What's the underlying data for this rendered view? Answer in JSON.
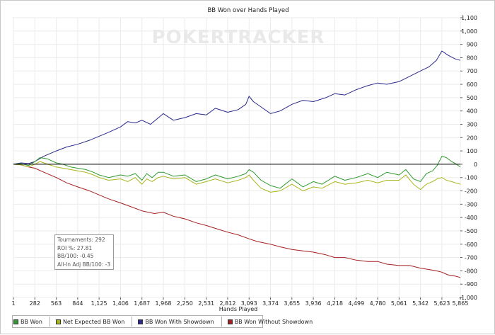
{
  "chart_data": {
    "type": "line",
    "title": "BB Won over Hands Played",
    "xlabel": "Hands Played",
    "ylabel": "",
    "watermark": "POKERTRACKER",
    "xlim": [
      1,
      5865
    ],
    "ylim": [
      -1000,
      1100
    ],
    "x_ticks": [
      1,
      282,
      563,
      844,
      1125,
      1406,
      1687,
      1968,
      2250,
      2531,
      2812,
      3093,
      3374,
      3655,
      3936,
      4218,
      4499,
      4780,
      5061,
      5342,
      5623,
      5865
    ],
    "x_tick_labels": [
      "1",
      "282",
      "563",
      "844",
      "1,125",
      "1,406",
      "1,687",
      "1,968",
      "2,250",
      "2,531",
      "2,812",
      "3,093",
      "3,374",
      "3,655",
      "3,936",
      "4,218",
      "4,499",
      "4,780",
      "5,061",
      "5,342",
      "5,623",
      "5,865"
    ],
    "y_ticks": [
      1100,
      1000,
      900,
      800,
      700,
      600,
      500,
      400,
      300,
      200,
      100,
      0,
      -100,
      -200,
      -300,
      -400,
      -500,
      -600,
      -700,
      -800,
      -900,
      -1000
    ],
    "y_tick_labels": [
      "1,100",
      "1,000",
      "900",
      "800",
      "700",
      "600",
      "500",
      "400",
      "300",
      "200",
      "100",
      "0",
      "-100",
      "-200",
      "-300",
      "-400",
      "-500",
      "-600",
      "-700",
      "-800",
      "-900",
      "-1,000"
    ],
    "grid": true,
    "legend_position": "bottom",
    "colors": {
      "bb_won": "#2f9a2f",
      "net_expected": "#a8b51a",
      "with_showdown": "#2a2a8c",
      "without_showdown": "#a51f1f",
      "grid": "#ebebeb",
      "zero_line": "#000000"
    },
    "series": [
      {
        "name": "BB Won",
        "color": "#2f9a2f",
        "x": [
          1,
          100,
          200,
          282,
          350,
          450,
          563,
          650,
          750,
          844,
          950,
          1050,
          1125,
          1250,
          1406,
          1500,
          1600,
          1687,
          1750,
          1820,
          1900,
          1968,
          2100,
          2250,
          2400,
          2531,
          2650,
          2812,
          2950,
          3050,
          3093,
          3150,
          3250,
          3374,
          3500,
          3655,
          3800,
          3936,
          4050,
          4218,
          4350,
          4499,
          4650,
          4780,
          4900,
          5061,
          5150,
          5250,
          5342,
          5420,
          5500,
          5560,
          5623,
          5680,
          5750,
          5800,
          5865
        ],
        "y": [
          0,
          5,
          -10,
          20,
          50,
          40,
          10,
          0,
          -20,
          -30,
          -40,
          -60,
          -80,
          -100,
          -80,
          -90,
          -70,
          -120,
          -70,
          -100,
          -60,
          -60,
          -90,
          -80,
          -130,
          -110,
          -80,
          -110,
          -90,
          -70,
          -40,
          -60,
          -120,
          -160,
          -180,
          -110,
          -170,
          -130,
          -150,
          -90,
          -120,
          -100,
          -70,
          -100,
          -60,
          -80,
          -40,
          -110,
          -130,
          -70,
          -50,
          -10,
          60,
          50,
          20,
          5,
          -20
        ]
      },
      {
        "name": "Net Expected BB Won",
        "color": "#a8b51a",
        "x": [
          1,
          100,
          200,
          282,
          350,
          450,
          563,
          650,
          750,
          844,
          950,
          1050,
          1125,
          1250,
          1406,
          1500,
          1600,
          1687,
          1750,
          1820,
          1900,
          1968,
          2100,
          2250,
          2400,
          2531,
          2650,
          2812,
          2950,
          3050,
          3093,
          3150,
          3250,
          3374,
          3500,
          3655,
          3800,
          3936,
          4050,
          4218,
          4350,
          4499,
          4650,
          4780,
          4900,
          5061,
          5150,
          5250,
          5342,
          5420,
          5500,
          5560,
          5623,
          5680,
          5750,
          5800,
          5865
        ],
        "y": [
          0,
          -5,
          -20,
          0,
          20,
          0,
          -20,
          -30,
          -40,
          -50,
          -60,
          -80,
          -100,
          -120,
          -110,
          -130,
          -100,
          -150,
          -110,
          -130,
          -100,
          -90,
          -110,
          -100,
          -150,
          -130,
          -110,
          -140,
          -120,
          -100,
          -80,
          -120,
          -180,
          -210,
          -200,
          -150,
          -200,
          -170,
          -180,
          -130,
          -150,
          -140,
          -120,
          -140,
          -120,
          -120,
          -80,
          -150,
          -190,
          -150,
          -130,
          -110,
          -100,
          -120,
          -130,
          -140,
          -150
        ]
      },
      {
        "name": "BB Won With Showdown",
        "color": "#2a2a8c",
        "x": [
          1,
          100,
          200,
          282,
          400,
          563,
          700,
          844,
          1000,
          1125,
          1250,
          1406,
          1500,
          1600,
          1687,
          1800,
          1968,
          2100,
          2250,
          2400,
          2531,
          2650,
          2812,
          2950,
          3050,
          3093,
          3150,
          3250,
          3374,
          3500,
          3655,
          3800,
          3936,
          4100,
          4218,
          4350,
          4499,
          4650,
          4780,
          4900,
          5061,
          5200,
          5342,
          5450,
          5550,
          5623,
          5700,
          5800,
          5865
        ],
        "y": [
          0,
          10,
          5,
          20,
          60,
          100,
          130,
          150,
          180,
          210,
          240,
          280,
          320,
          310,
          330,
          300,
          380,
          330,
          350,
          380,
          370,
          420,
          390,
          410,
          450,
          510,
          470,
          430,
          380,
          400,
          450,
          480,
          470,
          500,
          530,
          520,
          560,
          590,
          610,
          600,
          620,
          660,
          700,
          730,
          780,
          850,
          820,
          790,
          780
        ]
      },
      {
        "name": "BB Won Without Showdown",
        "color": "#a51f1f",
        "x": [
          1,
          100,
          200,
          282,
          400,
          563,
          700,
          844,
          1000,
          1125,
          1250,
          1406,
          1550,
          1687,
          1850,
          1968,
          2100,
          2250,
          2400,
          2531,
          2700,
          2812,
          2950,
          3093,
          3200,
          3374,
          3500,
          3655,
          3800,
          3936,
          4100,
          4218,
          4350,
          4499,
          4650,
          4780,
          4900,
          5061,
          5200,
          5342,
          5450,
          5550,
          5623,
          5700,
          5800,
          5865
        ],
        "y": [
          0,
          -5,
          -20,
          -30,
          -60,
          -100,
          -140,
          -170,
          -200,
          -230,
          -260,
          -290,
          -320,
          -350,
          -370,
          -360,
          -390,
          -410,
          -440,
          -460,
          -490,
          -510,
          -530,
          -560,
          -580,
          -600,
          -620,
          -640,
          -650,
          -660,
          -680,
          -700,
          -700,
          -720,
          -730,
          -730,
          -750,
          -760,
          -760,
          -780,
          -790,
          -800,
          -810,
          -830,
          -840,
          -850
        ]
      }
    ],
    "stats": [
      "Tournaments: 292",
      "ROI %: 27.81",
      "BB/100: -0.45",
      "All-In Adj BB/100: -3"
    ]
  }
}
